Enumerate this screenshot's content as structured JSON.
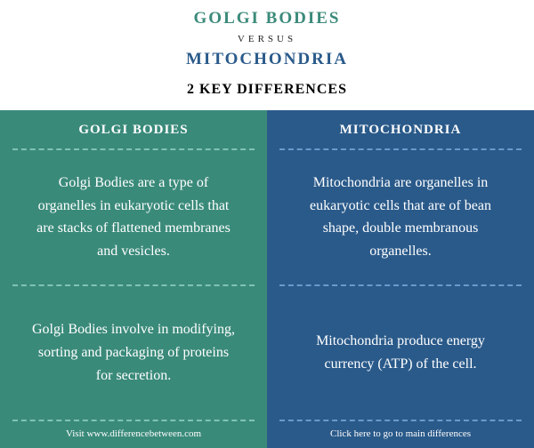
{
  "header": {
    "title1": "GOLGI BODIES",
    "title1_color": "#3a8a7a",
    "versus": "VERSUS",
    "title2": "MITOCHONDRIA",
    "title2_color": "#2a5a8a",
    "subtitle": "2 KEY DIFFERENCES"
  },
  "left": {
    "bg_color": "#3a8a7a",
    "border_color": "#7fc4b5",
    "header": "GOLGI BODIES",
    "cells": [
      "Golgi Bodies are a type of organelles in eukaryotic cells that are stacks of flattened membranes and vesicles.",
      "Golgi Bodies involve in modifying, sorting and packaging of proteins for secretion."
    ],
    "footer": "Visit www.differencebetween.com"
  },
  "right": {
    "bg_color": "#2a5a8a",
    "border_color": "#6a9acc",
    "header": "MITOCHONDRIA",
    "cells": [
      "Mitochondria are organelles in eukaryotic cells that are of bean shape, double membranous organelles.",
      "Mitochondria produce energy currency (ATP) of the cell."
    ],
    "footer": "Click here to go to main differences"
  }
}
